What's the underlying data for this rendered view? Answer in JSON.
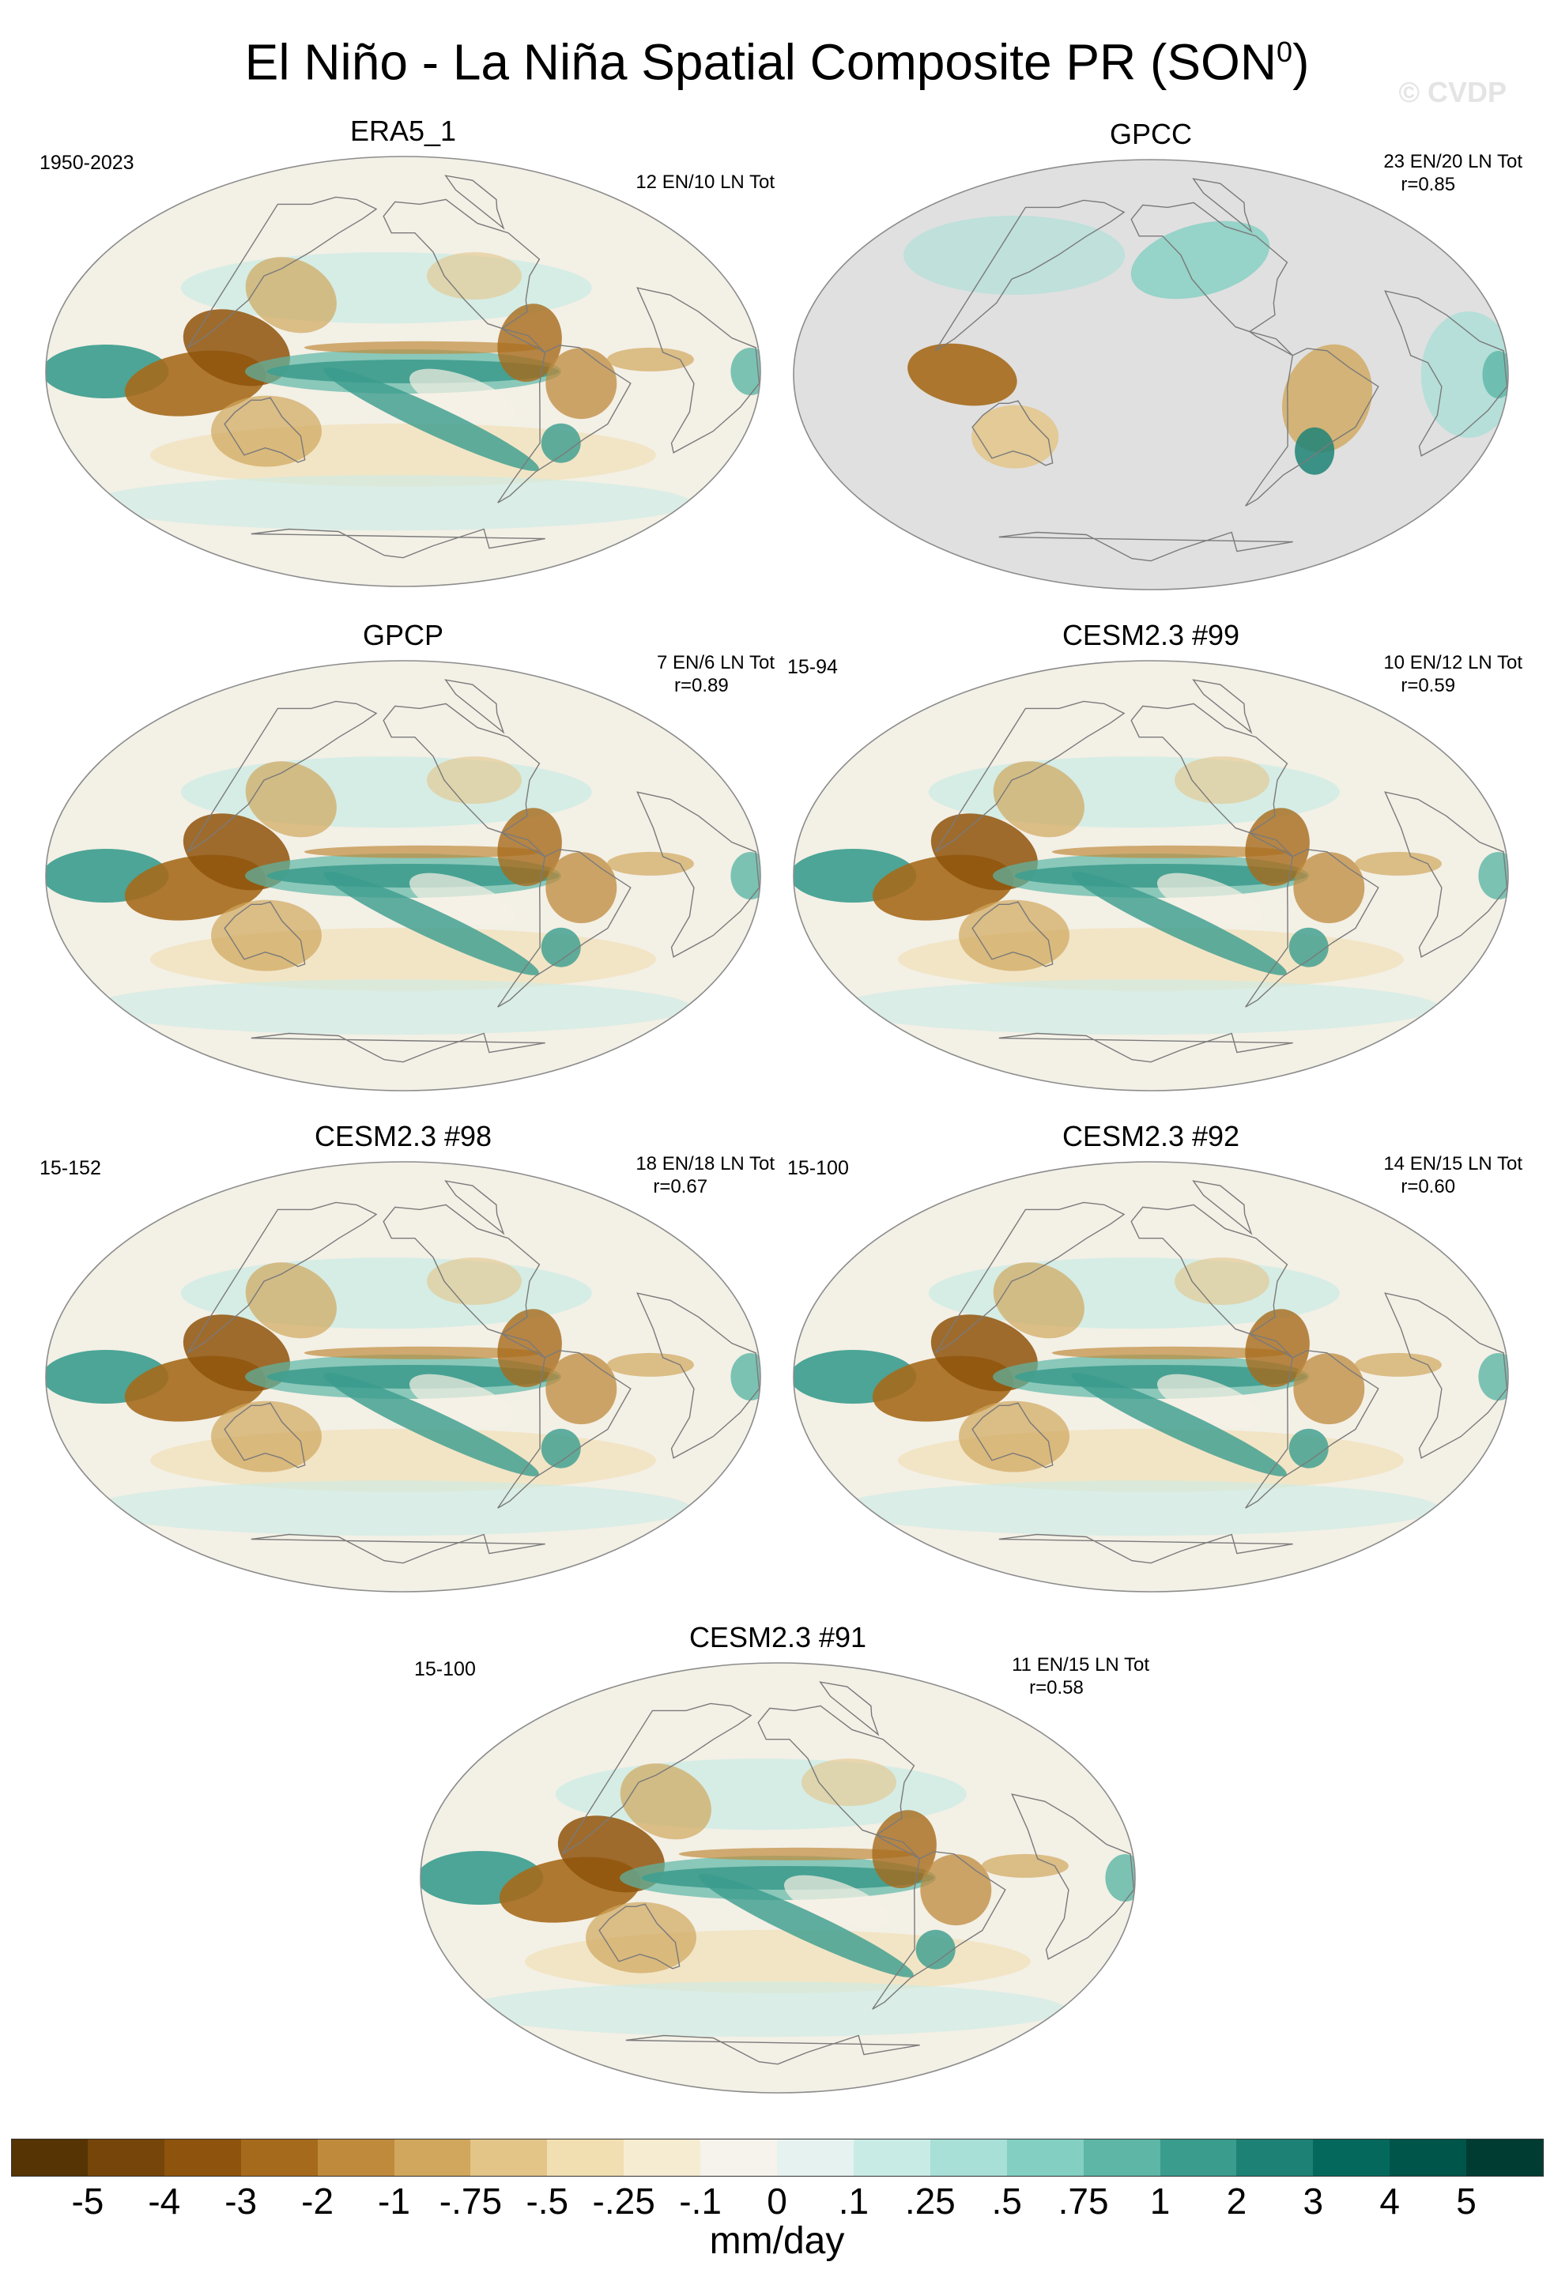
{
  "chart_data": {
    "type": "heatmap",
    "title": "El Niño - La Niña Spatial Composite PR (SON",
    "title_superscript": "0",
    "title_suffix": ")",
    "watermark": "© CVDP",
    "units": "mm/day",
    "colorbar": {
      "ticks": [
        "-5",
        "-4",
        "-3",
        "-2",
        "-1",
        "-.75",
        "-.5",
        "-.25",
        "-.1",
        "0",
        ".1",
        ".25",
        ".5",
        ".75",
        "1",
        "2",
        "3",
        "4",
        "5"
      ],
      "colors": [
        "#563404",
        "#754509",
        "#8e530c",
        "#a66a1c",
        "#bf8a3c",
        "#d0a75c",
        "#e3c588",
        "#f1deb1",
        "#f6ecd1",
        "#f5f3ec",
        "#e6f2f0",
        "#c9ebe6",
        "#a8dfd7",
        "#83cfc2",
        "#5db6a6",
        "#3a9c8d",
        "#1d8275",
        "#04695c",
        "#00554a",
        "#003c32"
      ]
    },
    "panels": [
      {
        "name": "ERA5_1",
        "period": "1950-2023",
        "counts": "12 EN/10 LN Tot",
        "r": "",
        "land_only": false
      },
      {
        "name": "GPCC",
        "period": "",
        "counts": "23 EN/20 LN Tot",
        "r": "r=0.85",
        "land_only": true
      },
      {
        "name": "GPCP",
        "period": "",
        "counts": "7 EN/6 LN Tot",
        "r": "r=0.89",
        "land_only": false
      },
      {
        "name": "CESM2.3 #99",
        "period": "15-94",
        "counts": "10 EN/12 LN Tot",
        "r": "r=0.59",
        "land_only": false
      },
      {
        "name": "CESM2.3 #98",
        "period": "15-152",
        "counts": "18 EN/18 LN Tot",
        "r": "r=0.67",
        "land_only": false
      },
      {
        "name": "CESM2.3 #92",
        "period": "15-100",
        "counts": "14 EN/15 LN Tot",
        "r": "r=0.60",
        "land_only": false
      },
      {
        "name": "CESM2.3 #91",
        "period": "15-100",
        "counts": "11 EN/15 LN Tot",
        "r": "r=0.58",
        "land_only": false
      }
    ]
  }
}
